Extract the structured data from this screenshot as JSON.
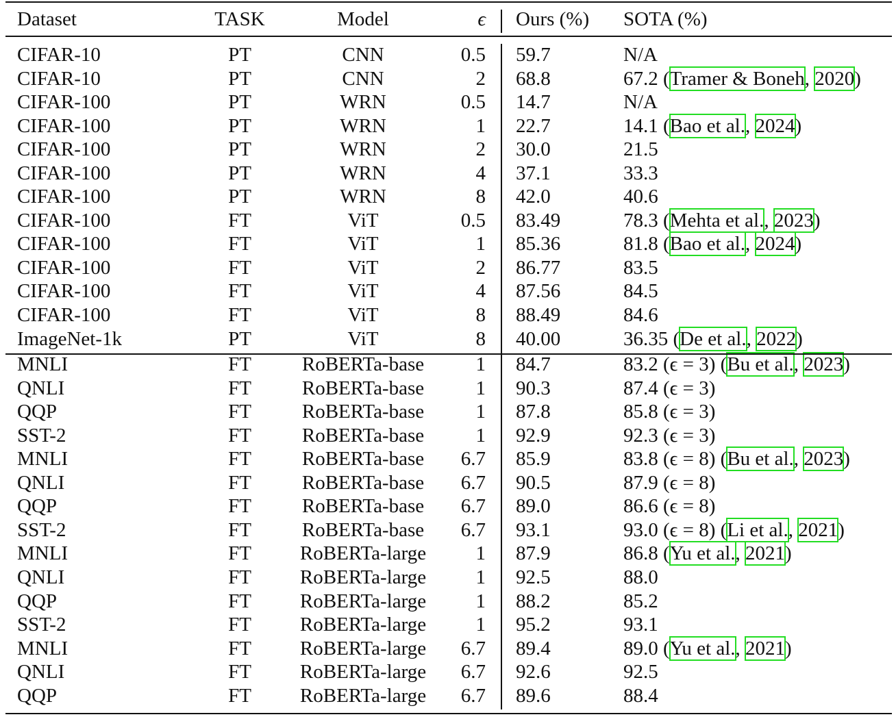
{
  "header": {
    "dataset": "Dataset",
    "task": "TASK",
    "model": "Model",
    "eps": "ϵ",
    "ours": "Ours (%)",
    "sota": "SOTA (%)"
  },
  "rows": [
    {
      "dataset": "CIFAR-10",
      "task": "PT",
      "model": "CNN",
      "eps": "0.5",
      "ours": "59.7",
      "sota_value": "N/A",
      "sota_note": "",
      "cite_author": "",
      "cite_year": ""
    },
    {
      "dataset": "CIFAR-10",
      "task": "PT",
      "model": "CNN",
      "eps": "2",
      "ours": "68.8",
      "sota_value": "67.2",
      "sota_note": "",
      "cite_author": "Tramer & Boneh",
      "cite_year": "2020"
    },
    {
      "dataset": "CIFAR-100",
      "task": "PT",
      "model": "WRN",
      "eps": "0.5",
      "ours": "14.7",
      "sota_value": "N/A",
      "sota_note": "",
      "cite_author": "",
      "cite_year": ""
    },
    {
      "dataset": "CIFAR-100",
      "task": "PT",
      "model": "WRN",
      "eps": "1",
      "ours": "22.7",
      "sota_value": "14.1",
      "sota_note": "",
      "cite_author": "Bao et al.",
      "cite_year": "2024"
    },
    {
      "dataset": "CIFAR-100",
      "task": "PT",
      "model": "WRN",
      "eps": "2",
      "ours": "30.0",
      "sota_value": "21.5",
      "sota_note": "",
      "cite_author": "",
      "cite_year": ""
    },
    {
      "dataset": "CIFAR-100",
      "task": "PT",
      "model": "WRN",
      "eps": "4",
      "ours": "37.1",
      "sota_value": "33.3",
      "sota_note": "",
      "cite_author": "",
      "cite_year": ""
    },
    {
      "dataset": "CIFAR-100",
      "task": "PT",
      "model": "WRN",
      "eps": "8",
      "ours": "42.0",
      "sota_value": "40.6",
      "sota_note": "",
      "cite_author": "",
      "cite_year": ""
    },
    {
      "dataset": "CIFAR-100",
      "task": "FT",
      "model": "ViT",
      "eps": "0.5",
      "ours": "83.49",
      "sota_value": "78.3",
      "sota_note": "",
      "cite_author": "Mehta et al.",
      "cite_year": "2023"
    },
    {
      "dataset": "CIFAR-100",
      "task": "FT",
      "model": "ViT",
      "eps": "1",
      "ours": "85.36",
      "sota_value": "81.8",
      "sota_note": "",
      "cite_author": "Bao et al.",
      "cite_year": "2024"
    },
    {
      "dataset": "CIFAR-100",
      "task": "FT",
      "model": "ViT",
      "eps": "2",
      "ours": "86.77",
      "sota_value": "83.5",
      "sota_note": "",
      "cite_author": "",
      "cite_year": ""
    },
    {
      "dataset": "CIFAR-100",
      "task": "FT",
      "model": "ViT",
      "eps": "4",
      "ours": "87.56",
      "sota_value": "84.5",
      "sota_note": "",
      "cite_author": "",
      "cite_year": ""
    },
    {
      "dataset": "CIFAR-100",
      "task": "FT",
      "model": "ViT",
      "eps": "8",
      "ours": "88.49",
      "sota_value": "84.6",
      "sota_note": "",
      "cite_author": "",
      "cite_year": ""
    },
    {
      "dataset": "ImageNet-1k",
      "task": "PT",
      "model": "ViT",
      "eps": "8",
      "ours": "40.00",
      "sota_value": "36.35",
      "sota_note": "",
      "cite_author": "De et al.",
      "cite_year": "2022"
    },
    {
      "dataset": "MNLI",
      "task": "FT",
      "model": "RoBERTa-base",
      "eps": "1",
      "ours": "84.7",
      "sota_value": "83.2",
      "sota_note": "(ϵ = 3)",
      "cite_author": "Bu et al.",
      "cite_year": "2023"
    },
    {
      "dataset": "QNLI",
      "task": "FT",
      "model": "RoBERTa-base",
      "eps": "1",
      "ours": "90.3",
      "sota_value": "87.4",
      "sota_note": "(ϵ = 3)",
      "cite_author": "",
      "cite_year": ""
    },
    {
      "dataset": "QQP",
      "task": "FT",
      "model": "RoBERTa-base",
      "eps": "1",
      "ours": "87.8",
      "sota_value": "85.8",
      "sota_note": "(ϵ = 3)",
      "cite_author": "",
      "cite_year": ""
    },
    {
      "dataset": "SST-2",
      "task": "FT",
      "model": "RoBERTa-base",
      "eps": "1",
      "ours": "92.9",
      "sota_value": "92.3",
      "sota_note": "(ϵ = 3)",
      "cite_author": "",
      "cite_year": ""
    },
    {
      "dataset": "MNLI",
      "task": "FT",
      "model": "RoBERTa-base",
      "eps": "6.7",
      "ours": "85.9",
      "sota_value": "83.8",
      "sota_note": "(ϵ = 8)",
      "cite_author": "Bu et al.",
      "cite_year": "2023"
    },
    {
      "dataset": "QNLI",
      "task": "FT",
      "model": "RoBERTa-base",
      "eps": "6.7",
      "ours": "90.5",
      "sota_value": "87.9",
      "sota_note": "(ϵ = 8)",
      "cite_author": "",
      "cite_year": ""
    },
    {
      "dataset": "QQP",
      "task": "FT",
      "model": "RoBERTa-base",
      "eps": "6.7",
      "ours": "89.0",
      "sota_value": "86.6",
      "sota_note": "(ϵ = 8)",
      "cite_author": "",
      "cite_year": ""
    },
    {
      "dataset": "SST-2",
      "task": "FT",
      "model": "RoBERTa-base",
      "eps": "6.7",
      "ours": "93.1",
      "sota_value": "93.0",
      "sota_note": "(ϵ = 8)",
      "cite_author": "Li et al.",
      "cite_year": "2021"
    },
    {
      "dataset": "MNLI",
      "task": "FT",
      "model": "RoBERTa-large",
      "eps": "1",
      "ours": "87.9",
      "sota_value": "86.8",
      "sota_note": "",
      "cite_author": "Yu et al.",
      "cite_year": "2021"
    },
    {
      "dataset": "QNLI",
      "task": "FT",
      "model": "RoBERTa-large",
      "eps": "1",
      "ours": "92.5",
      "sota_value": "88.0",
      "sota_note": "",
      "cite_author": "",
      "cite_year": ""
    },
    {
      "dataset": "QQP",
      "task": "FT",
      "model": "RoBERTa-large",
      "eps": "1",
      "ours": "88.2",
      "sota_value": "85.2",
      "sota_note": "",
      "cite_author": "",
      "cite_year": ""
    },
    {
      "dataset": "SST-2",
      "task": "FT",
      "model": "RoBERTa-large",
      "eps": "1",
      "ours": "95.2",
      "sota_value": "93.1",
      "sota_note": "",
      "cite_author": "",
      "cite_year": ""
    },
    {
      "dataset": "MNLI",
      "task": "FT",
      "model": "RoBERTa-large",
      "eps": "6.7",
      "ours": "89.4",
      "sota_value": "89.0",
      "sota_note": "",
      "cite_author": "Yu et al.",
      "cite_year": "2021"
    },
    {
      "dataset": "QNLI",
      "task": "FT",
      "model": "RoBERTa-large",
      "eps": "6.7",
      "ours": "92.6",
      "sota_value": "92.5",
      "sota_note": "",
      "cite_author": "",
      "cite_year": ""
    },
    {
      "dataset": "QQP",
      "task": "FT",
      "model": "RoBERTa-large",
      "eps": "6.7",
      "ours": "89.6",
      "sota_value": "88.4",
      "sota_note": "",
      "cite_author": "",
      "cite_year": ""
    }
  ],
  "citation_box_color": "#22dd22"
}
